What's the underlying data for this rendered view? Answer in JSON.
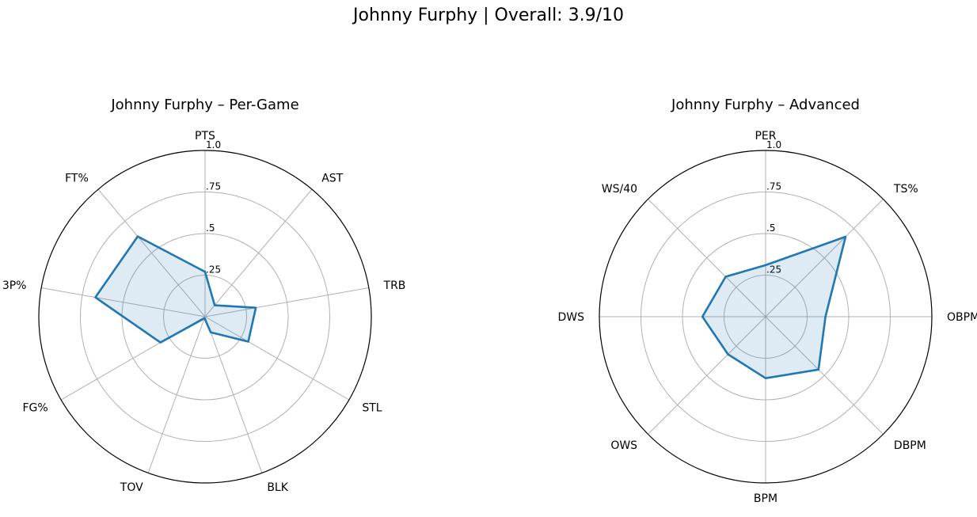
{
  "suptitle": "Johnny Furphy | Overall: 3.9/10",
  "chart_data": [
    {
      "type": "radar",
      "title": "Johnny Furphy – Per-Game",
      "categories": [
        "PTS",
        "AST",
        "TRB",
        "STL",
        "BLK",
        "TOV",
        "FG%",
        "3P%",
        "FT%"
      ],
      "values": [
        0.27,
        0.09,
        0.31,
        0.3,
        0.1,
        0.01,
        0.31,
        0.67,
        0.63
      ],
      "rlim": [
        0,
        1.0
      ],
      "rticks": [
        0.25,
        0.5,
        0.75,
        1.0
      ],
      "rtick_labels": [
        ".25",
        ".5",
        ".75",
        "1.0"
      ],
      "grid": true,
      "color": "#1f77b4"
    },
    {
      "type": "radar",
      "title": "Johnny Furphy – Advanced",
      "categories": [
        "PER",
        "TS%",
        "OBPM",
        "DBPM",
        "BPM",
        "OWS",
        "DWS",
        "WS/40"
      ],
      "values": [
        0.31,
        0.68,
        0.36,
        0.45,
        0.37,
        0.32,
        0.38,
        0.34
      ],
      "rlim": [
        0,
        1.0
      ],
      "rticks": [
        0.25,
        0.5,
        0.75,
        1.0
      ],
      "rtick_labels": [
        ".25",
        ".5",
        ".75",
        "1.0"
      ],
      "grid": true,
      "color": "#1f77b4"
    }
  ]
}
